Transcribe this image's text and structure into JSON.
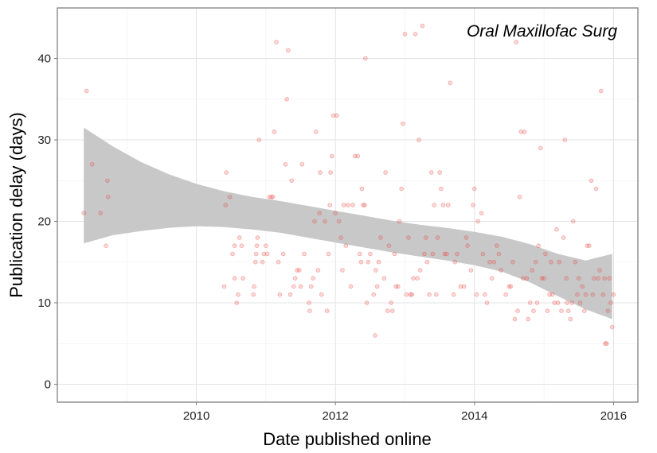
{
  "chart_data": {
    "type": "scatter",
    "title": "Oral Maxillofac Surg",
    "xlabel": "Date published online",
    "ylabel": "Publication delay (days)",
    "xlim": [
      2008.0,
      2016.35
    ],
    "ylim": [
      -2.2,
      46.2
    ],
    "x_ticks": [
      2010,
      2012,
      2014,
      2016
    ],
    "x_tick_labels": [
      "2010",
      "2012",
      "2014",
      "2016"
    ],
    "y_ticks": [
      0,
      10,
      20,
      30,
      40
    ],
    "y_tick_labels": [
      "0",
      "10",
      "20",
      "30",
      "40"
    ],
    "grid": true,
    "point_color": "#e8403a",
    "band_color": "#c8c8c8",
    "smooth_fit": {
      "x": [
        2008.38,
        2008.8,
        2009.2,
        2009.6,
        2010.0,
        2010.4,
        2010.8,
        2011.2,
        2011.6,
        2012.0,
        2012.4,
        2012.8,
        2013.2,
        2013.6,
        2014.0,
        2014.4,
        2014.8,
        2015.2,
        2015.6,
        2015.98
      ],
      "upper": [
        31.5,
        29.2,
        27.3,
        25.8,
        24.6,
        23.7,
        23.0,
        22.5,
        21.9,
        21.3,
        20.7,
        20.1,
        19.6,
        19.2,
        18.7,
        18.1,
        17.2,
        16.0,
        15.2,
        16.0
      ],
      "lower": [
        17.3,
        18.3,
        18.8,
        19.2,
        19.4,
        19.3,
        19.0,
        18.6,
        18.0,
        17.4,
        16.8,
        16.2,
        15.7,
        15.2,
        14.6,
        13.8,
        12.5,
        10.8,
        9.2,
        8.0
      ]
    },
    "series": [
      {
        "points": [
          [
            2008.38,
            21
          ],
          [
            2008.42,
            36
          ],
          [
            2008.5,
            27
          ],
          [
            2008.62,
            21
          ],
          [
            2008.7,
            17
          ],
          [
            2008.72,
            25
          ],
          [
            2008.73,
            23
          ],
          [
            2010.4,
            12
          ],
          [
            2010.42,
            22
          ],
          [
            2010.43,
            26
          ],
          [
            2010.48,
            23
          ],
          [
            2010.52,
            16
          ],
          [
            2010.55,
            17
          ],
          [
            2010.55,
            13
          ],
          [
            2010.58,
            10
          ],
          [
            2010.6,
            11
          ],
          [
            2010.62,
            18
          ],
          [
            2010.65,
            17
          ],
          [
            2010.67,
            13
          ],
          [
            2010.82,
            11
          ],
          [
            2010.83,
            12
          ],
          [
            2010.85,
            15
          ],
          [
            2010.86,
            16
          ],
          [
            2010.87,
            17
          ],
          [
            2010.88,
            18
          ],
          [
            2010.9,
            30
          ],
          [
            2010.95,
            15
          ],
          [
            2010.97,
            16
          ],
          [
            2011.0,
            17
          ],
          [
            2011.02,
            16
          ],
          [
            2011.05,
            23
          ],
          [
            2011.08,
            23
          ],
          [
            2011.1,
            23
          ],
          [
            2011.12,
            31
          ],
          [
            2011.15,
            42
          ],
          [
            2011.18,
            15
          ],
          [
            2011.2,
            11
          ],
          [
            2011.25,
            16
          ],
          [
            2011.28,
            27
          ],
          [
            2011.3,
            35
          ],
          [
            2011.32,
            41
          ],
          [
            2011.35,
            11
          ],
          [
            2011.37,
            25
          ],
          [
            2011.4,
            12
          ],
          [
            2011.42,
            13
          ],
          [
            2011.45,
            14
          ],
          [
            2011.48,
            14
          ],
          [
            2011.5,
            12
          ],
          [
            2011.52,
            27
          ],
          [
            2011.55,
            16
          ],
          [
            2011.62,
            10
          ],
          [
            2011.63,
            9
          ],
          [
            2011.65,
            12
          ],
          [
            2011.68,
            13
          ],
          [
            2011.7,
            20
          ],
          [
            2011.72,
            31
          ],
          [
            2011.75,
            14
          ],
          [
            2011.77,
            21
          ],
          [
            2011.78,
            26
          ],
          [
            2011.8,
            11
          ],
          [
            2011.85,
            20
          ],
          [
            2011.88,
            9
          ],
          [
            2011.9,
            16
          ],
          [
            2011.92,
            22
          ],
          [
            2011.93,
            26
          ],
          [
            2011.95,
            28
          ],
          [
            2011.97,
            33
          ],
          [
            2012.02,
            33
          ],
          [
            2012.0,
            21
          ],
          [
            2012.05,
            20
          ],
          [
            2012.08,
            18
          ],
          [
            2012.1,
            14
          ],
          [
            2012.12,
            22
          ],
          [
            2012.15,
            17
          ],
          [
            2012.18,
            22
          ],
          [
            2012.22,
            12
          ],
          [
            2012.25,
            22
          ],
          [
            2012.28,
            28
          ],
          [
            2012.32,
            28
          ],
          [
            2012.35,
            16
          ],
          [
            2012.37,
            15
          ],
          [
            2012.38,
            24
          ],
          [
            2012.4,
            22
          ],
          [
            2012.42,
            22
          ],
          [
            2012.43,
            40
          ],
          [
            2012.45,
            10
          ],
          [
            2012.47,
            15
          ],
          [
            2012.5,
            16
          ],
          [
            2012.55,
            11
          ],
          [
            2012.57,
            6
          ],
          [
            2012.58,
            14
          ],
          [
            2012.6,
            12
          ],
          [
            2012.62,
            15
          ],
          [
            2012.65,
            18
          ],
          [
            2012.7,
            13
          ],
          [
            2012.72,
            26
          ],
          [
            2012.75,
            9
          ],
          [
            2012.77,
            17
          ],
          [
            2012.8,
            10
          ],
          [
            2012.82,
            9
          ],
          [
            2012.85,
            16
          ],
          [
            2012.87,
            12
          ],
          [
            2012.9,
            12
          ],
          [
            2012.92,
            20
          ],
          [
            2012.95,
            24
          ],
          [
            2012.97,
            32
          ],
          [
            2013.0,
            43
          ],
          [
            2013.02,
            11
          ],
          [
            2013.05,
            18
          ],
          [
            2013.08,
            11
          ],
          [
            2013.1,
            11
          ],
          [
            2013.12,
            13
          ],
          [
            2013.15,
            43
          ],
          [
            2013.18,
            13
          ],
          [
            2013.2,
            30
          ],
          [
            2013.22,
            14
          ],
          [
            2013.25,
            44
          ],
          [
            2013.28,
            16
          ],
          [
            2013.3,
            18
          ],
          [
            2013.32,
            15
          ],
          [
            2013.35,
            11
          ],
          [
            2013.38,
            26
          ],
          [
            2013.4,
            16
          ],
          [
            2013.42,
            22
          ],
          [
            2013.45,
            11
          ],
          [
            2013.47,
            18
          ],
          [
            2013.5,
            26
          ],
          [
            2013.52,
            24
          ],
          [
            2013.55,
            22
          ],
          [
            2013.57,
            16
          ],
          [
            2013.6,
            16
          ],
          [
            2013.62,
            22
          ],
          [
            2013.65,
            37
          ],
          [
            2013.7,
            11
          ],
          [
            2013.72,
            15
          ],
          [
            2013.75,
            16
          ],
          [
            2013.8,
            12
          ],
          [
            2013.85,
            12
          ],
          [
            2013.88,
            18
          ],
          [
            2013.9,
            17
          ],
          [
            2013.95,
            14
          ],
          [
            2013.98,
            22
          ],
          [
            2014.0,
            24
          ],
          [
            2014.03,
            11
          ],
          [
            2014.05,
            20
          ],
          [
            2014.1,
            21
          ],
          [
            2014.12,
            16
          ],
          [
            2014.15,
            11
          ],
          [
            2014.18,
            10
          ],
          [
            2014.22,
            15
          ],
          [
            2014.25,
            13
          ],
          [
            2014.28,
            15
          ],
          [
            2014.32,
            17
          ],
          [
            2014.35,
            16
          ],
          [
            2014.38,
            14
          ],
          [
            2014.45,
            11
          ],
          [
            2014.5,
            12
          ],
          [
            2014.52,
            12
          ],
          [
            2014.55,
            15
          ],
          [
            2014.58,
            8
          ],
          [
            2014.6,
            42
          ],
          [
            2014.62,
            9
          ],
          [
            2014.65,
            23
          ],
          [
            2014.67,
            31
          ],
          [
            2014.7,
            13
          ],
          [
            2014.72,
            31
          ],
          [
            2014.75,
            13
          ],
          [
            2014.77,
            8
          ],
          [
            2014.8,
            10
          ],
          [
            2014.83,
            14
          ],
          [
            2014.85,
            9
          ],
          [
            2014.88,
            15
          ],
          [
            2014.9,
            10
          ],
          [
            2014.92,
            17
          ],
          [
            2014.95,
            29
          ],
          [
            2014.97,
            13
          ],
          [
            2015.0,
            13
          ],
          [
            2015.02,
            16
          ],
          [
            2015.05,
            9
          ],
          [
            2015.08,
            11
          ],
          [
            2015.1,
            15
          ],
          [
            2015.12,
            11
          ],
          [
            2015.15,
            10
          ],
          [
            2015.18,
            19
          ],
          [
            2015.2,
            10
          ],
          [
            2015.22,
            15
          ],
          [
            2015.25,
            9
          ],
          [
            2015.28,
            18
          ],
          [
            2015.3,
            30
          ],
          [
            2015.32,
            13
          ],
          [
            2015.33,
            10
          ],
          [
            2015.35,
            9
          ],
          [
            2015.38,
            8
          ],
          [
            2015.4,
            10
          ],
          [
            2015.42,
            20
          ],
          [
            2015.45,
            15
          ],
          [
            2015.48,
            11
          ],
          [
            2015.5,
            13
          ],
          [
            2015.52,
            10
          ],
          [
            2015.55,
            12
          ],
          [
            2015.58,
            9
          ],
          [
            2015.6,
            11
          ],
          [
            2015.62,
            17
          ],
          [
            2015.65,
            17
          ],
          [
            2015.68,
            25
          ],
          [
            2015.7,
            11
          ],
          [
            2015.72,
            13
          ],
          [
            2015.75,
            24
          ],
          [
            2015.78,
            13
          ],
          [
            2015.8,
            14
          ],
          [
            2015.82,
            36
          ],
          [
            2015.85,
            11
          ],
          [
            2015.87,
            13
          ],
          [
            2015.88,
            5
          ],
          [
            2015.9,
            5
          ],
          [
            2015.92,
            9
          ],
          [
            2015.94,
            13
          ],
          [
            2015.96,
            10
          ],
          [
            2015.98,
            7
          ],
          [
            2016.0,
            11
          ]
        ]
      }
    ]
  }
}
